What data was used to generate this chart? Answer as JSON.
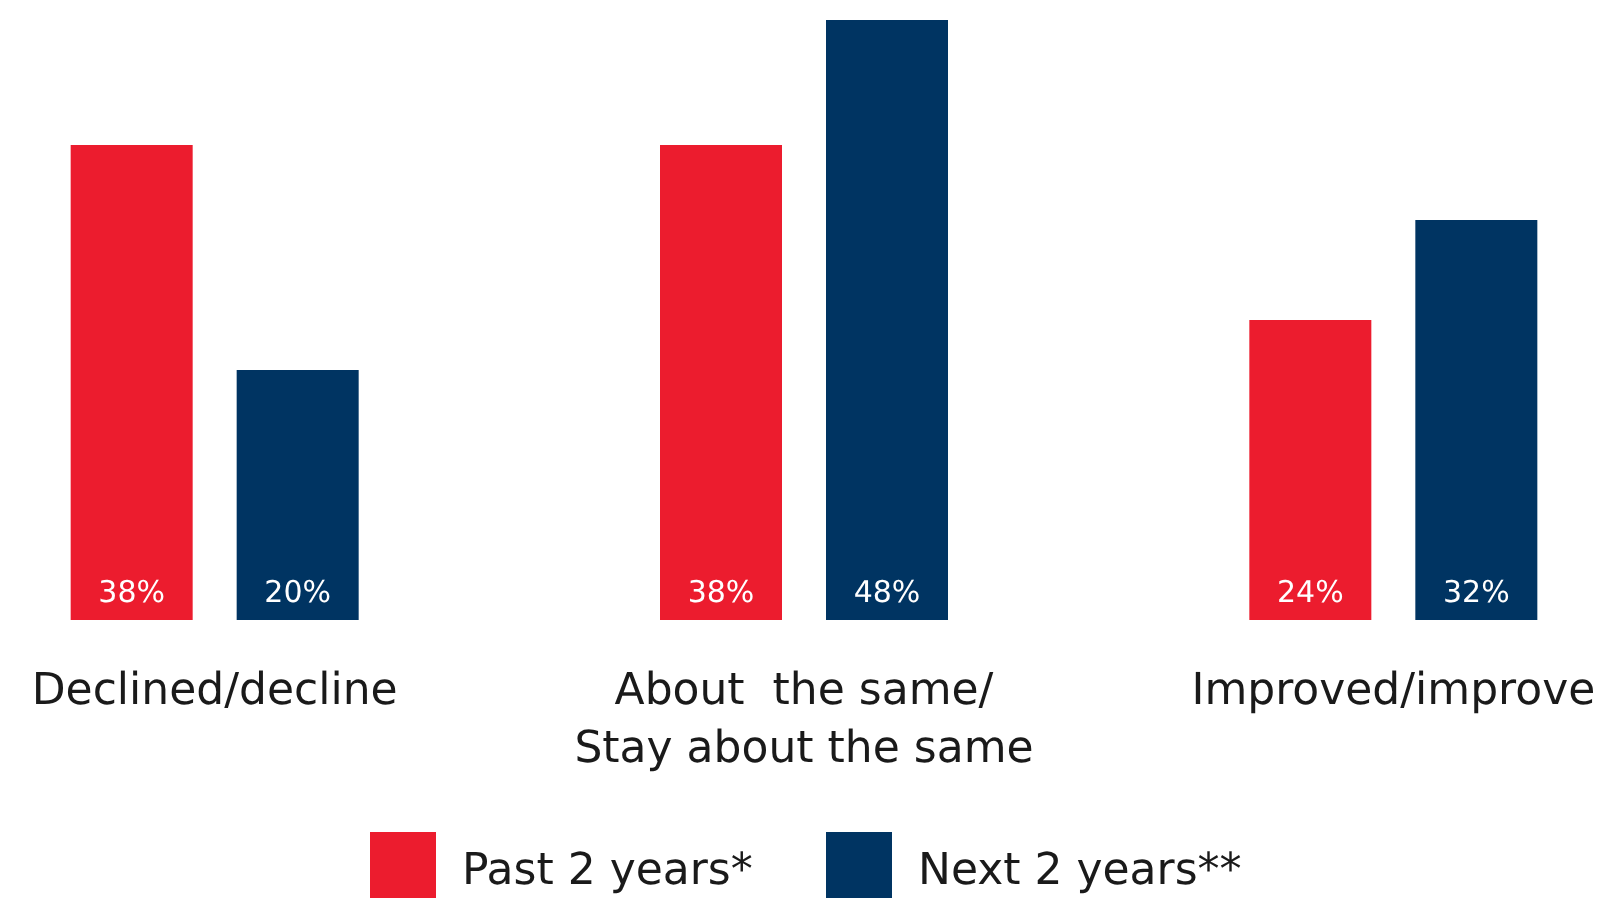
{
  "chart_data": {
    "type": "bar",
    "categories": [
      "Declined/decline",
      "About  the same/\nStay about the same",
      "Improved/improve"
    ],
    "series": [
      {
        "name": "Past 2 years*",
        "color": "#ec1c2e",
        "values": [
          38,
          38,
          24
        ],
        "value_labels": [
          "38%",
          "38%",
          "24%"
        ]
      },
      {
        "name": "Next 2 years**",
        "color": "#003462",
        "values": [
          20,
          48,
          32
        ],
        "value_labels": [
          "20%",
          "48%",
          "32%"
        ]
      }
    ],
    "legend": "bottom"
  }
}
